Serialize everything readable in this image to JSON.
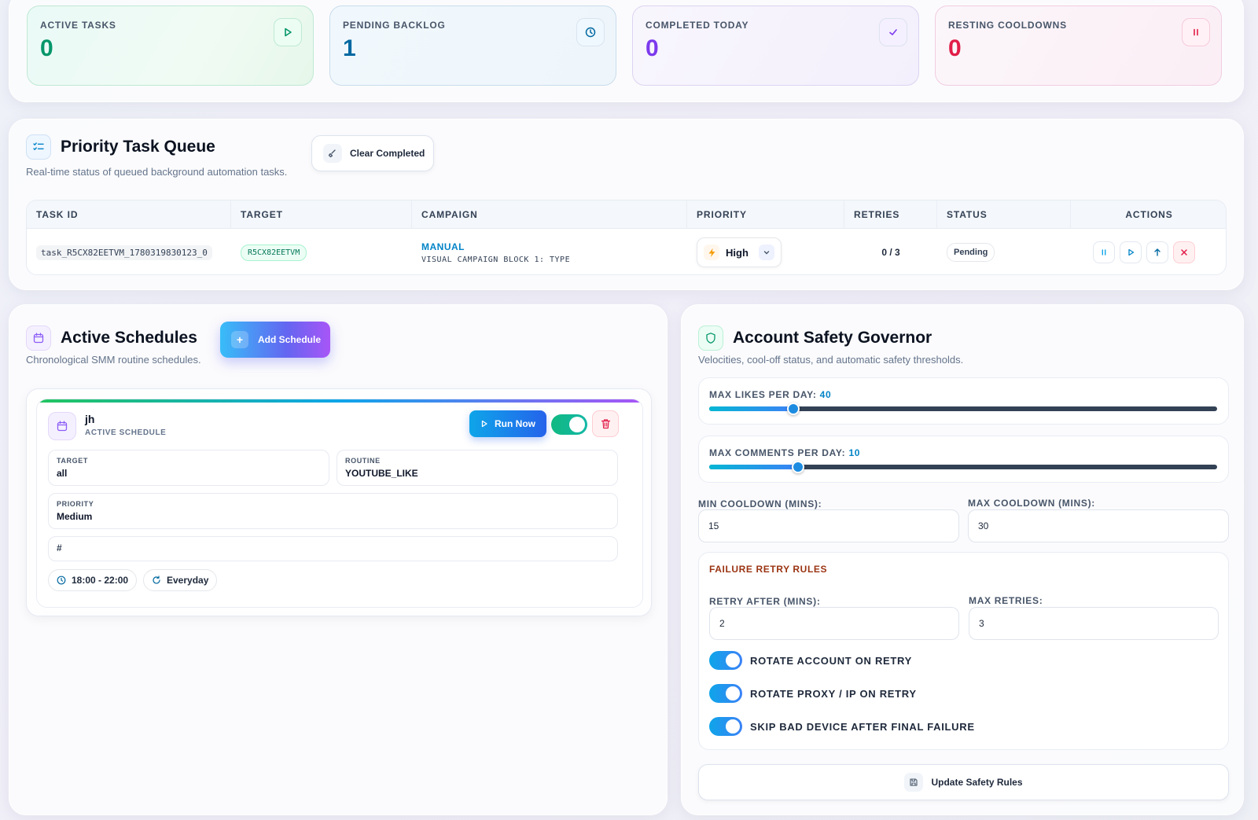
{
  "stats": [
    {
      "label": "ACTIVE TASKS",
      "value": "0",
      "icon": "play-icon",
      "color": "#059669"
    },
    {
      "label": "PENDING BACKLOG",
      "value": "1",
      "icon": "clock-icon",
      "color": "#0369a1"
    },
    {
      "label": "COMPLETED TODAY",
      "value": "0",
      "icon": "check-icon",
      "color": "#7c3aed"
    },
    {
      "label": "RESTING COOLDOWNS",
      "value": "0",
      "icon": "pause-icon",
      "color": "#e11d48"
    }
  ],
  "queue": {
    "title": "Priority Task Queue",
    "subtitle": "Real-time status of queued background automation tasks.",
    "clear_label": "Clear Completed",
    "columns": [
      "TASK ID",
      "TARGET",
      "CAMPAIGN",
      "PRIORITY",
      "RETRIES",
      "STATUS",
      "ACTIONS"
    ],
    "rows": [
      {
        "task_id": "task_R5CX82EETVM_1780319830123_0",
        "target": "R5CX82EETVM",
        "campaign_type": "MANUAL",
        "campaign_name": "VISUAL CAMPAIGN BLOCK 1: TYPE",
        "priority": "High",
        "retries": "0 / 3",
        "status": "Pending"
      }
    ]
  },
  "schedules": {
    "title": "Active Schedules",
    "subtitle": "Chronological SMM routine schedules.",
    "add_label": "Add Schedule",
    "items": [
      {
        "name": "jh",
        "state": "ACTIVE SCHEDULE",
        "run_label": "Run Now",
        "enabled": true,
        "target_label": "TARGET",
        "target": "all",
        "routine_label": "ROUTINE",
        "routine": "YOUTUBE_LIKE",
        "priority_label": "PRIORITY",
        "priority": "Medium",
        "tag": "#",
        "time": "18:00 - 22:00",
        "repeat": "Everyday"
      }
    ]
  },
  "governor": {
    "title": "Account Safety Governor",
    "subtitle": "Velocities, cool-off status, and automatic safety thresholds.",
    "likes_label": "MAX LIKES PER DAY:",
    "likes_value": "40",
    "likes_fraction": 0.166,
    "comments_label": "MAX COMMENTS PER DAY:",
    "comments_value": "10",
    "comments_fraction": 0.175,
    "min_cooldown_label": "MIN COOLDOWN (MINS):",
    "min_cooldown": "15",
    "max_cooldown_label": "MAX COOLDOWN (MINS):",
    "max_cooldown": "30",
    "retry_title": "FAILURE RETRY RULES",
    "retry_after_label": "RETRY AFTER (MINS):",
    "retry_after": "2",
    "max_retries_label": "MAX RETRIES:",
    "max_retries": "3",
    "toggles": [
      {
        "label": "ROTATE ACCOUNT ON RETRY",
        "on": true
      },
      {
        "label": "ROTATE PROXY / IP ON RETRY",
        "on": true
      },
      {
        "label": "SKIP BAD DEVICE AFTER FINAL FAILURE",
        "on": true
      }
    ],
    "update_label": "Update Safety Rules"
  }
}
